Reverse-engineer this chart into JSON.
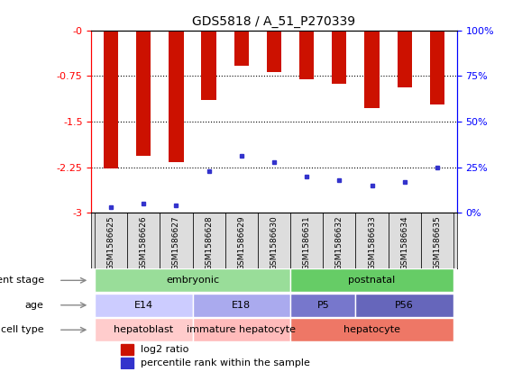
{
  "title": "GDS5818 / A_51_P270339",
  "samples": [
    "GSM1586625",
    "GSM1586626",
    "GSM1586627",
    "GSM1586628",
    "GSM1586629",
    "GSM1586630",
    "GSM1586631",
    "GSM1586632",
    "GSM1586633",
    "GSM1586634",
    "GSM1586635"
  ],
  "log2_ratio": [
    -2.27,
    -2.07,
    -2.17,
    -1.15,
    -0.58,
    -0.68,
    -0.81,
    -0.87,
    -1.28,
    -0.93,
    -1.22
  ],
  "percentile_rank": [
    3,
    5,
    4,
    23,
    31,
    28,
    20,
    18,
    15,
    17,
    25
  ],
  "ylim_left": [
    -3,
    0
  ],
  "ylim_right": [
    0,
    100
  ],
  "yticks_left": [
    -3,
    -2.25,
    -1.5,
    -0.75,
    0
  ],
  "yticks_right": [
    0,
    25,
    50,
    75,
    100
  ],
  "ytick_labels_left": [
    "-3",
    "-2.25",
    "-1.5",
    "-0.75",
    "-0"
  ],
  "ytick_labels_right": [
    "0%",
    "25%",
    "50%",
    "75%",
    "100%"
  ],
  "bar_color": "#cc1100",
  "dot_color": "#3333cc",
  "development_stage_labels": [
    {
      "text": "embryonic",
      "start": 0,
      "end": 5,
      "color": "#99dd99"
    },
    {
      "text": "postnatal",
      "start": 6,
      "end": 10,
      "color": "#66cc66"
    }
  ],
  "age_labels": [
    {
      "text": "E14",
      "start": 0,
      "end": 2,
      "color": "#ccccff"
    },
    {
      "text": "E18",
      "start": 3,
      "end": 5,
      "color": "#aaaaee"
    },
    {
      "text": "P5",
      "start": 6,
      "end": 7,
      "color": "#7777cc"
    },
    {
      "text": "P56",
      "start": 8,
      "end": 10,
      "color": "#6666bb"
    }
  ],
  "cell_type_labels": [
    {
      "text": "hepatoblast",
      "start": 0,
      "end": 2,
      "color": "#ffcccc"
    },
    {
      "text": "immature hepatocyte",
      "start": 3,
      "end": 5,
      "color": "#ffbbbb"
    },
    {
      "text": "hepatocyte",
      "start": 6,
      "end": 10,
      "color": "#ee7766"
    }
  ],
  "legend_items": [
    {
      "label": "log2 ratio",
      "color": "#cc1100"
    },
    {
      "label": "percentile rank within the sample",
      "color": "#3333cc"
    }
  ]
}
